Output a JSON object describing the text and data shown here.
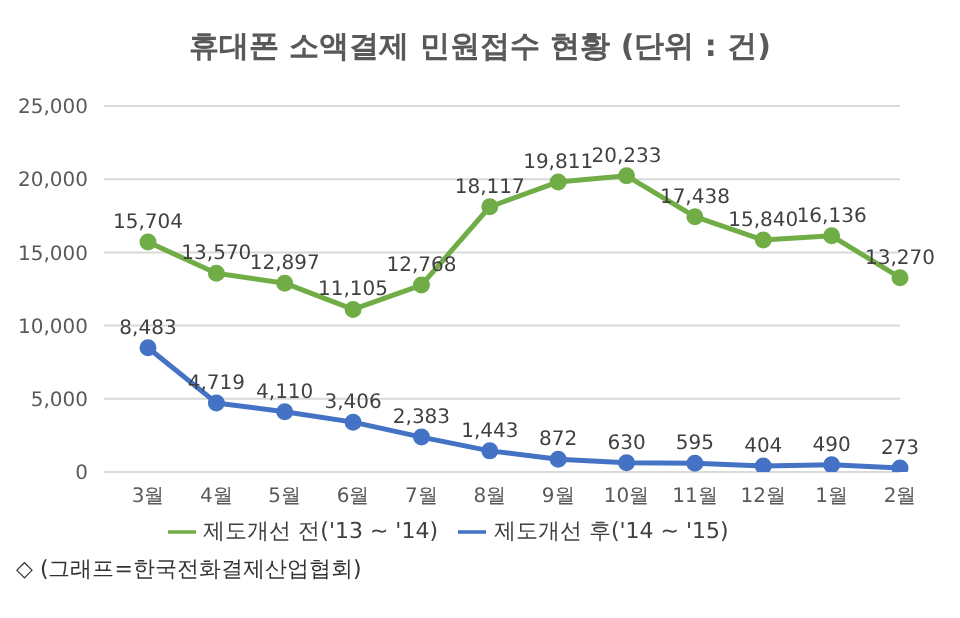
{
  "chart_data": {
    "type": "line",
    "title": "휴대폰 소액결제 민원접수 현황 (단위 : 건)",
    "categories": [
      "3월",
      "4월",
      "5월",
      "6월",
      "7월",
      "8월",
      "9월",
      "10월",
      "11월",
      "12월",
      "1월",
      "2월"
    ],
    "series": [
      {
        "name": "제도개선 전('13 ~ '14)",
        "color": "#70ad47",
        "values": [
          15704,
          13570,
          12897,
          11105,
          12768,
          18117,
          19811,
          20233,
          17438,
          15840,
          16136,
          13270
        ],
        "value_labels": [
          "15,704",
          "13,570",
          "12,897",
          "11,105",
          "12,768",
          "18,117",
          "19,811",
          "20,233",
          "17,438",
          "15,840",
          "16,136",
          "13,270"
        ]
      },
      {
        "name": "제도개선 후('14 ~ '15)",
        "color": "#4472c4",
        "values": [
          8483,
          4719,
          4110,
          3406,
          2383,
          1443,
          872,
          630,
          595,
          404,
          490,
          273
        ],
        "value_labels": [
          "8,483",
          "4,719",
          "4,110",
          "3,406",
          "2,383",
          "1,443",
          "872",
          "630",
          "595",
          "404",
          "490",
          "273"
        ]
      }
    ],
    "ylim": [
      0,
      25000
    ],
    "yticks": [
      0,
      {
        "value": 5000,
        "label": "5,000"
      },
      {
        "value": 10000,
        "label": "10,000"
      },
      {
        "value": 15000,
        "label": "15,000"
      },
      {
        "value": 20000,
        "label": "20,000"
      },
      {
        "value": 25000,
        "label": "25,000"
      }
    ],
    "grid": "y",
    "legend": "bottom",
    "marker": "circle",
    "line_style": "solid",
    "annotations": [
      "◇ (그래프=한국전화결제산업협회)"
    ]
  }
}
